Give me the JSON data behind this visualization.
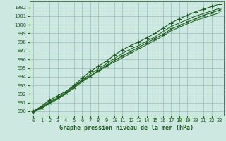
{
  "title": "Graphe pression niveau de la mer (hPa)",
  "bg_color": "#cce8e0",
  "grid_color": "#99bbbb",
  "line_color": "#1a5c1a",
  "spine_color": "#336633",
  "xlim": [
    -0.5,
    23.5
  ],
  "ylim": [
    989.5,
    1002.7
  ],
  "yticks": [
    990,
    991,
    992,
    993,
    994,
    995,
    996,
    997,
    998,
    999,
    1000,
    1001,
    1002
  ],
  "xticks": [
    0,
    1,
    2,
    3,
    4,
    5,
    6,
    7,
    8,
    9,
    10,
    11,
    12,
    13,
    14,
    15,
    16,
    17,
    18,
    19,
    20,
    21,
    22,
    23
  ],
  "series": [
    [
      990.0,
      990.6,
      991.3,
      991.8,
      992.3,
      993.0,
      993.8,
      994.6,
      995.2,
      995.8,
      996.5,
      997.1,
      997.6,
      998.0,
      998.5,
      999.0,
      999.6,
      1000.2,
      1000.7,
      1001.1,
      1001.5,
      1001.8,
      1002.1,
      1002.4
    ],
    [
      990.0,
      990.5,
      991.1,
      991.6,
      992.2,
      992.9,
      993.6,
      994.3,
      994.9,
      995.5,
      996.1,
      996.7,
      997.2,
      997.6,
      998.1,
      998.6,
      999.2,
      999.8,
      1000.2,
      1000.6,
      1001.0,
      1001.3,
      1001.6,
      1001.9
    ],
    [
      990.0,
      990.4,
      991.0,
      991.5,
      992.1,
      992.8,
      993.5,
      994.1,
      994.7,
      995.3,
      995.9,
      996.4,
      996.9,
      997.4,
      997.9,
      998.4,
      998.9,
      999.5,
      999.9,
      1000.3,
      1000.7,
      1001.1,
      1001.4,
      1001.7
    ],
    [
      990.0,
      990.3,
      990.9,
      991.4,
      992.0,
      992.7,
      993.4,
      994.0,
      994.6,
      995.2,
      995.7,
      996.2,
      996.7,
      997.2,
      997.7,
      998.2,
      998.7,
      999.3,
      999.7,
      1000.1,
      1000.5,
      1000.8,
      1001.1,
      1001.4
    ]
  ],
  "marker_series": [
    0,
    2
  ],
  "title_fontsize": 6.0,
  "tick_fontsize": 5.0
}
